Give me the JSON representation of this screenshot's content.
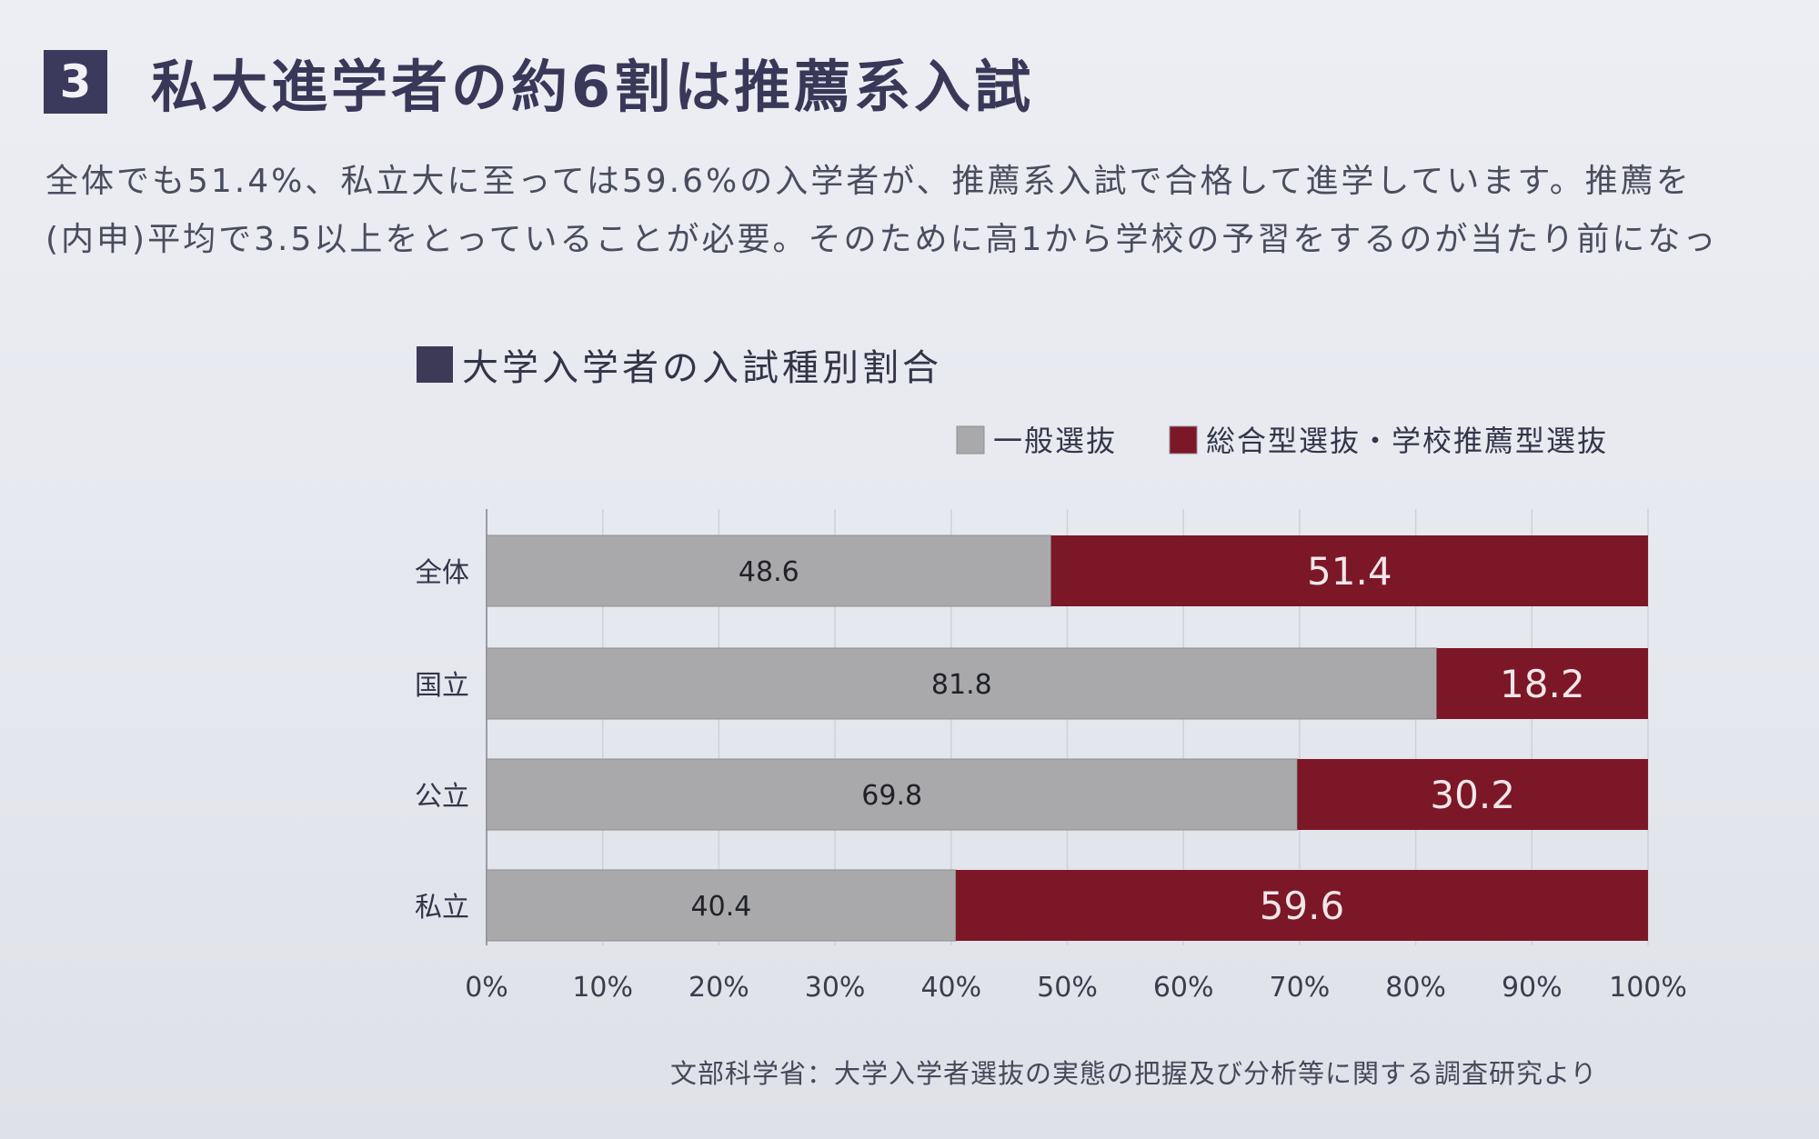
{
  "section": {
    "number": "3",
    "title": "私大進学者の約6割は推薦系入試"
  },
  "body_text": {
    "line1": "全体でも51.4%、私立大に至っては59.6%の入学者が、推薦系入試で合格して進学しています。推薦を",
    "line2": "(内申)平均で3.5以上をとっていることが必要。そのために高1から学校の予習をするのが当たり前になっ"
  },
  "chart_data": {
    "type": "bar",
    "orientation": "horizontal",
    "stacked": true,
    "title": "大学入学者の入試種別割合",
    "categories": [
      "全体",
      "国立",
      "公立",
      "私立"
    ],
    "series": [
      {
        "name": "一般選抜",
        "values": [
          48.6,
          81.8,
          69.8,
          40.4
        ],
        "color": "#a9a9ab"
      },
      {
        "name": "総合型選抜・学校推薦型選抜",
        "values": [
          51.4,
          18.2,
          30.2,
          59.6
        ],
        "color": "#7c1727"
      }
    ],
    "data_labels": [
      [
        "48.6",
        "81.8",
        "69.8",
        "40.4"
      ],
      [
        "51.4",
        "18.2",
        "30.2",
        "59.6"
      ]
    ],
    "xlim": [
      0,
      100
    ],
    "x_ticks": [
      "0%",
      "10%",
      "20%",
      "30%",
      "40%",
      "50%",
      "60%",
      "70%",
      "80%",
      "90%",
      "100%"
    ],
    "grid": true,
    "legend_position": "top-right"
  },
  "source": "文部科学省：大学入学者選抜の実態の把握及び分析等に関する調査研究より",
  "colors": {
    "section_badge": "#3b3a5c",
    "grid": "#cfd1d6",
    "axis": "#9a9ca4"
  }
}
